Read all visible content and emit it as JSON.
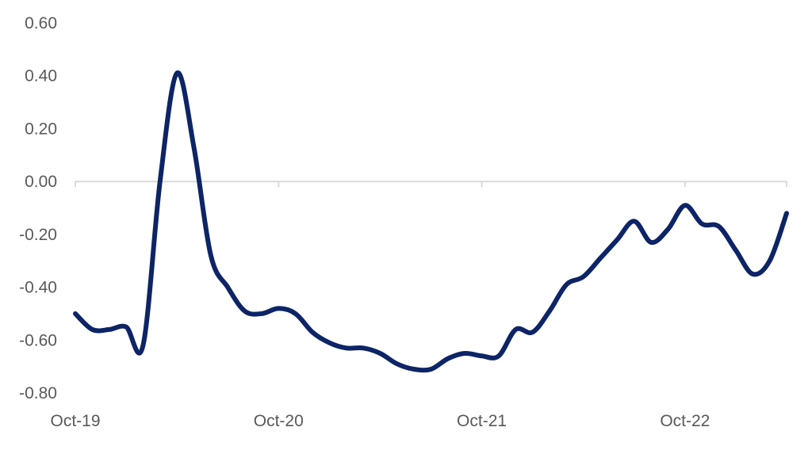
{
  "chart_data": {
    "type": "line",
    "title": "",
    "xlabel": "",
    "ylabel": "",
    "ylim": [
      -0.8,
      0.6
    ],
    "yticks": [
      "0.60",
      "0.40",
      "0.20",
      "0.00",
      "-0.20",
      "-0.40",
      "-0.60",
      "-0.80"
    ],
    "xticks": [
      "Oct-19",
      "Oct-20",
      "Oct-21",
      "Oct-22"
    ],
    "grid": false,
    "legend": "none",
    "line_color": "#0d2466",
    "axis_color": "#d9d9d9",
    "series": [
      {
        "x": [
          "2019-10",
          "2019-11",
          "2019-12",
          "2020-01",
          "2020-02",
          "2020-03",
          "2020-04",
          "2020-05",
          "2020-06",
          "2020-07",
          "2020-08",
          "2020-09",
          "2020-10",
          "2020-11",
          "2020-12",
          "2021-01",
          "2021-02",
          "2021-03",
          "2021-04",
          "2021-05",
          "2021-06",
          "2021-07",
          "2021-08",
          "2021-09",
          "2021-10",
          "2021-11",
          "2021-12",
          "2022-01",
          "2022-02",
          "2022-03",
          "2022-04",
          "2022-05",
          "2022-06",
          "2022-07",
          "2022-08",
          "2022-09",
          "2022-10",
          "2022-11",
          "2022-12",
          "2023-01",
          "2023-02",
          "2023-03",
          "2023-04"
        ],
        "values": [
          -0.5,
          -0.56,
          -0.56,
          -0.55,
          -0.62,
          0.0,
          0.41,
          0.13,
          -0.28,
          -0.4,
          -0.49,
          -0.5,
          -0.48,
          -0.5,
          -0.57,
          -0.61,
          -0.63,
          -0.63,
          -0.65,
          -0.69,
          -0.71,
          -0.71,
          -0.67,
          -0.65,
          -0.66,
          -0.66,
          -0.56,
          -0.57,
          -0.49,
          -0.39,
          -0.36,
          -0.29,
          -0.22,
          -0.15,
          -0.23,
          -0.18,
          -0.09,
          -0.16,
          -0.17,
          -0.26,
          -0.35,
          -0.3,
          -0.12
        ]
      }
    ]
  }
}
